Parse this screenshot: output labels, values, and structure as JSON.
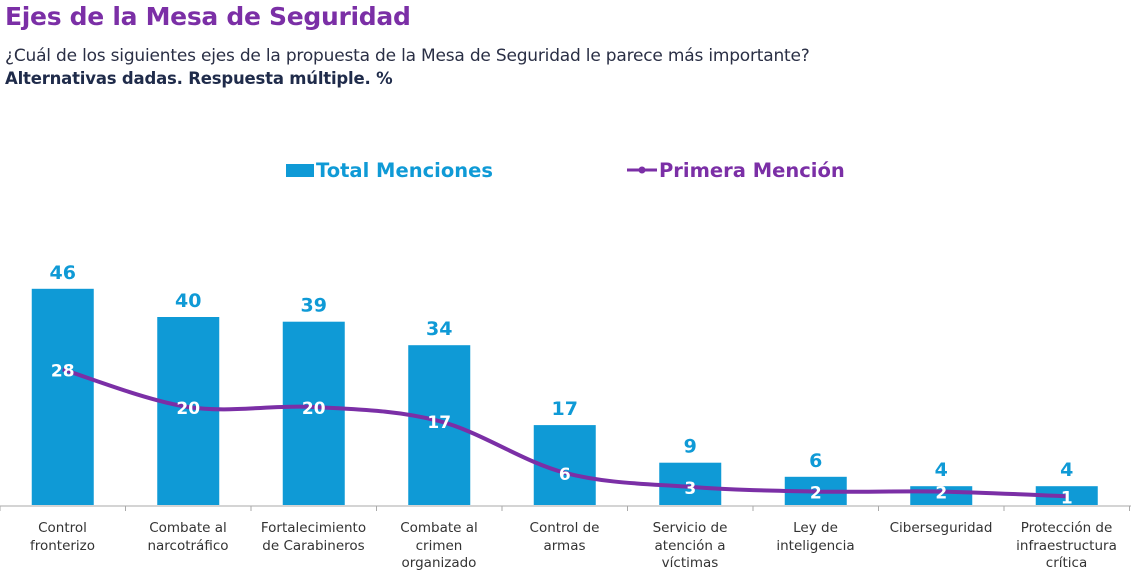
{
  "header": {
    "title": "Ejes de la Mesa de Seguridad",
    "question": "¿Cuál de los siguientes ejes de la propuesta de la Mesa de Seguridad le parece más importante?",
    "subtitle": "Alternativas dadas. Respuesta múltiple. %"
  },
  "colors": {
    "bar": "#0f9ad6",
    "line": "#7b2fa6",
    "title": "#7b2fa6"
  },
  "chart_data": {
    "type": "bar",
    "title": "Ejes de la Mesa de Seguridad",
    "xlabel": "",
    "ylabel": "%",
    "ylim": [
      0,
      46
    ],
    "grid": false,
    "legend": "top-center",
    "categories": [
      "Control fronterizo",
      "Combate al narcotráfico",
      "Fortalecimiento de Carabineros",
      "Combate al crimen organizado",
      "Control de armas",
      "Servicio de atención a víctimas",
      "Ley de inteligencia",
      "Ciberseguridad",
      "Protección de infraestructura crítica"
    ],
    "category_lines": [
      [
        "Control",
        "fronterizo"
      ],
      [
        "Combate al",
        "narcotráfico"
      ],
      [
        "Fortalecimiento",
        "de Carabineros"
      ],
      [
        "Combate al",
        "crimen",
        "organizado"
      ],
      [
        "Control de",
        "armas"
      ],
      [
        "Servicio de",
        "atención a",
        "víctimas"
      ],
      [
        "Ley de",
        "inteligencia"
      ],
      [
        "Ciberseguridad"
      ],
      [
        "Protección de",
        "infraestructura",
        "crítica"
      ]
    ],
    "series": [
      {
        "name": "Total Menciones",
        "type": "bar",
        "values": [
          46,
          40,
          39,
          34,
          17,
          9,
          6,
          4,
          4
        ]
      },
      {
        "name": "Primera Mención",
        "type": "line",
        "values": [
          28,
          20,
          20,
          17,
          6,
          3,
          2,
          2,
          1
        ]
      }
    ]
  }
}
